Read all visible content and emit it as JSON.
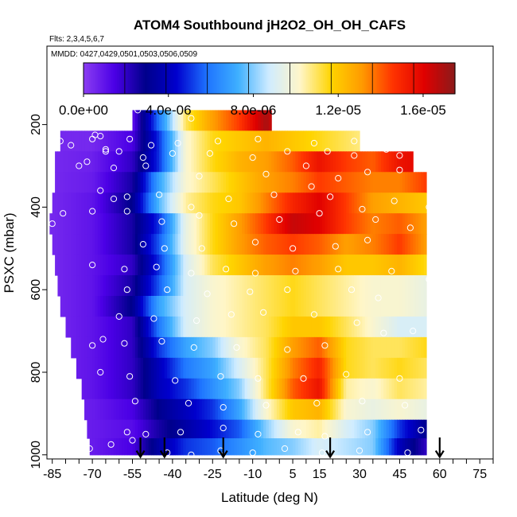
{
  "chart_data": {
    "type": "heatmap",
    "title": "ATOM4 Southbound jH2O2_OH_OH_CAFS",
    "flights_label": "Flts: 2,3,4,5,6,7",
    "dates_label": "MMDD: 0427,0429,0501,0503,0506,0509",
    "xlabel": "Latitude (deg N)",
    "ylabel": "PSXC (mbar)",
    "xlim": [
      -87,
      80
    ],
    "ylim": [
      1010,
      10
    ],
    "x_ticks": [
      -85,
      -70,
      -55,
      -40,
      -25,
      -10,
      5,
      15,
      30,
      45,
      60,
      75
    ],
    "x_tick_labels": [
      "-85",
      "-70",
      "-55",
      "-40",
      "-25",
      "-10",
      "5",
      "15",
      "30",
      "45",
      "60",
      "75"
    ],
    "y_ticks": [
      200,
      400,
      600,
      800,
      1000
    ],
    "y_tick_labels": [
      "200",
      "400",
      "600",
      "800",
      "1000"
    ],
    "colorbar": {
      "min": 0,
      "max": 1.75e-05,
      "ticks": [
        0,
        4e-06,
        8e-06,
        1.2e-05,
        1.6e-05
      ],
      "tick_labels": [
        "0.0e+00",
        "4.0e-06",
        "8.0e-06",
        "1.2e-05",
        "1.6e-05"
      ],
      "colors": [
        "#8b3ef2",
        "#4b00e6",
        "#00008b",
        "#0000cd",
        "#1e74ff",
        "#3fb0ff",
        "#d0ecff",
        "#fff6c8",
        "#ffd400",
        "#ff9a00",
        "#ff3300",
        "#e00000",
        "#8b1a1a"
      ]
    },
    "pressure_levels": [
      190,
      240,
      290,
      340,
      390,
      440,
      490,
      540,
      590,
      640,
      690,
      740,
      790,
      840,
      890,
      940,
      980
    ],
    "lat_extent": [
      [
        -55,
        -3
      ],
      [
        -82,
        30
      ],
      [
        -84,
        50
      ],
      [
        -84,
        55
      ],
      [
        -85,
        55
      ],
      [
        -86,
        55
      ],
      [
        -85,
        55
      ],
      [
        -84,
        55
      ],
      [
        -83,
        55
      ],
      [
        -82,
        55
      ],
      [
        -80,
        55
      ],
      [
        -78,
        55
      ],
      [
        -76,
        55
      ],
      [
        -74,
        55
      ],
      [
        -73,
        55
      ],
      [
        -72,
        55
      ],
      [
        -71,
        55
      ]
    ],
    "lat_nodes": [
      -85,
      -70,
      -55,
      -45,
      -35,
      -25,
      -15,
      -5,
      5,
      15,
      25,
      35,
      45,
      55,
      65,
      72
    ],
    "values_e6": [
      [
        0.5,
        0.5,
        1.0,
        6.0,
        11.0,
        13.0,
        14.5,
        17.0,
        14.0,
        12.0,
        11.0,
        10.0,
        9.0,
        9.0,
        9.0,
        9.0
      ],
      [
        0.5,
        0.5,
        1.5,
        5.0,
        10.0,
        11.5,
        12.0,
        12.5,
        12.0,
        11.5,
        11.0,
        10.5,
        10.0,
        10.0,
        10.0,
        10.0
      ],
      [
        0.5,
        0.7,
        2.0,
        5.0,
        10.0,
        11.5,
        12.5,
        13.0,
        14.0,
        15.5,
        14.5,
        14.0,
        15.5,
        16.0,
        11.0,
        10.0
      ],
      [
        0.5,
        0.8,
        2.5,
        7.0,
        10.0,
        11.0,
        12.0,
        13.0,
        13.5,
        14.5,
        14.0,
        13.5,
        13.5,
        14.5,
        11.0,
        9.0
      ],
      [
        0.5,
        1.0,
        3.0,
        7.5,
        10.5,
        11.5,
        12.0,
        13.5,
        15.0,
        16.0,
        14.5,
        13.0,
        12.5,
        12.0,
        10.5,
        8.5
      ],
      [
        0.5,
        1.0,
        2.5,
        5.0,
        9.5,
        11.5,
        13.0,
        14.5,
        16.5,
        16.0,
        14.5,
        13.5,
        14.0,
        13.0,
        11.5,
        9.5
      ],
      [
        0.5,
        1.0,
        2.5,
        5.5,
        9.5,
        11.5,
        13.0,
        14.0,
        14.5,
        14.0,
        13.0,
        13.5,
        14.5,
        13.0,
        11.0,
        9.0
      ],
      [
        0.5,
        1.0,
        2.0,
        5.0,
        9.0,
        11.0,
        12.0,
        13.0,
        13.5,
        13.0,
        12.0,
        12.0,
        12.5,
        11.5,
        10.0,
        9.0
      ],
      [
        0.5,
        1.0,
        2.5,
        5.5,
        9.0,
        10.0,
        10.5,
        11.0,
        11.5,
        11.0,
        10.5,
        10.0,
        10.0,
        9.5,
        9.0,
        9.0
      ],
      [
        0.5,
        1.0,
        3.0,
        7.0,
        9.0,
        10.0,
        10.5,
        11.0,
        11.5,
        11.0,
        10.5,
        10.0,
        10.0,
        9.5,
        9.0,
        9.0
      ],
      [
        0.5,
        1.0,
        2.0,
        6.0,
        9.0,
        10.0,
        10.5,
        11.0,
        12.0,
        12.0,
        11.0,
        10.0,
        9.0,
        9.0,
        9.0,
        9.0
      ],
      [
        0.5,
        1.0,
        2.0,
        5.0,
        7.0,
        8.0,
        10.0,
        11.0,
        13.0,
        14.0,
        11.5,
        11.0,
        11.0,
        11.5,
        10.0,
        9.0
      ],
      [
        0.5,
        1.0,
        2.0,
        4.0,
        6.0,
        7.0,
        9.0,
        11.0,
        13.5,
        15.0,
        11.5,
        11.0,
        11.5,
        11.0,
        10.0,
        9.0
      ],
      [
        0.5,
        1.0,
        2.0,
        4.0,
        5.0,
        6.5,
        8.0,
        11.0,
        14.0,
        15.5,
        10.5,
        10.0,
        11.0,
        10.5,
        9.5,
        9.0
      ],
      [
        0.5,
        0.8,
        1.5,
        3.0,
        4.0,
        5.0,
        7.0,
        10.0,
        12.0,
        12.5,
        10.0,
        9.5,
        10.0,
        9.5,
        8.5,
        8.5
      ],
      [
        0.5,
        0.8,
        1.2,
        2.5,
        3.5,
        4.5,
        5.5,
        8.0,
        10.0,
        10.5,
        9.0,
        8.0,
        5.0,
        3.0,
        6.0,
        8.0
      ],
      [
        0.5,
        0.8,
        1.5,
        3.5,
        5.0,
        5.5,
        6.5,
        7.5,
        8.0,
        9.0,
        8.5,
        8.0,
        4.0,
        2.0,
        4.0,
        7.0
      ]
    ],
    "observation_points": [
      [
        -53,
        165
      ],
      [
        -33,
        185
      ],
      [
        -82,
        240
      ],
      [
        -78,
        250
      ],
      [
        -70,
        235
      ],
      [
        -69,
        225
      ],
      [
        -67,
        228
      ],
      [
        -65,
        265
      ],
      [
        -60,
        265
      ],
      [
        -56,
        235
      ],
      [
        -48,
        250
      ],
      [
        -38,
        245
      ],
      [
        -23,
        240
      ],
      [
        -8,
        235
      ],
      [
        13,
        245
      ],
      [
        28,
        240
      ],
      [
        40,
        260
      ],
      [
        44,
        250
      ],
      [
        57,
        245
      ],
      [
        -72,
        290
      ],
      [
        -65,
        260
      ],
      [
        -51,
        280
      ],
      [
        -40,
        270
      ],
      [
        -26,
        270
      ],
      [
        -10,
        280
      ],
      [
        3,
        265
      ],
      [
        18,
        265
      ],
      [
        28,
        275
      ],
      [
        45,
        275
      ],
      [
        52,
        280
      ],
      [
        -75,
        300
      ],
      [
        -62,
        305
      ],
      [
        -50,
        300
      ],
      [
        -30,
        325
      ],
      [
        -5,
        320
      ],
      [
        10,
        300
      ],
      [
        22,
        330
      ],
      [
        33,
        315
      ],
      [
        45,
        310
      ],
      [
        57,
        305
      ],
      [
        -67,
        360
      ],
      [
        -62,
        380
      ],
      [
        -57,
        375
      ],
      [
        -45,
        370
      ],
      [
        -33,
        400
      ],
      [
        -19,
        380
      ],
      [
        -2,
        370
      ],
      [
        12,
        350
      ],
      [
        19,
        375
      ],
      [
        31,
        405
      ],
      [
        43,
        385
      ],
      [
        56,
        400
      ],
      [
        -85,
        440
      ],
      [
        -81,
        415
      ],
      [
        -70,
        410
      ],
      [
        -57,
        410
      ],
      [
        -44,
        435
      ],
      [
        -30,
        420
      ],
      [
        -17,
        440
      ],
      [
        0,
        430
      ],
      [
        15,
        415
      ],
      [
        36,
        430
      ],
      [
        49,
        450
      ],
      [
        58,
        455
      ],
      [
        -51,
        490
      ],
      [
        -43,
        500
      ],
      [
        -29,
        500
      ],
      [
        -9,
        485
      ],
      [
        5,
        500
      ],
      [
        21,
        495
      ],
      [
        33,
        480
      ],
      [
        -70,
        540
      ],
      [
        -58,
        550
      ],
      [
        -46,
        545
      ],
      [
        -33,
        560
      ],
      [
        -20,
        550
      ],
      [
        -9,
        560
      ],
      [
        6,
        555
      ],
      [
        22,
        550
      ],
      [
        42,
        555
      ],
      [
        56,
        575
      ],
      [
        -57,
        600
      ],
      [
        -42,
        600
      ],
      [
        -27,
        610
      ],
      [
        -11,
        605
      ],
      [
        3,
        600
      ],
      [
        27,
        600
      ],
      [
        37,
        620
      ],
      [
        -60,
        665
      ],
      [
        -47,
        670
      ],
      [
        -31,
        675
      ],
      [
        -18,
        660
      ],
      [
        -6,
        655
      ],
      [
        13,
        660
      ],
      [
        29,
        680
      ],
      [
        39,
        705
      ],
      [
        50,
        700
      ],
      [
        61,
        690
      ],
      [
        -70,
        735
      ],
      [
        -66,
        720
      ],
      [
        -58,
        730
      ],
      [
        -44,
        725
      ],
      [
        -32,
        740
      ],
      [
        -16,
        740
      ],
      [
        3,
        745
      ],
      [
        17,
        735
      ],
      [
        -67,
        800
      ],
      [
        -56,
        810
      ],
      [
        -39,
        820
      ],
      [
        -22,
        810
      ],
      [
        -8,
        815
      ],
      [
        9,
        815
      ],
      [
        25,
        805
      ],
      [
        45,
        815
      ],
      [
        58,
        820
      ],
      [
        -54,
        870
      ],
      [
        -34,
        875
      ],
      [
        -21,
        885
      ],
      [
        -5,
        880
      ],
      [
        14,
        875
      ],
      [
        31,
        870
      ],
      [
        47,
        880
      ],
      [
        59,
        885
      ],
      [
        -57,
        945
      ],
      [
        -50,
        950
      ],
      [
        -37,
        945
      ],
      [
        -21,
        935
      ],
      [
        -8,
        950
      ],
      [
        7,
        945
      ],
      [
        17,
        955
      ],
      [
        33,
        945
      ],
      [
        53,
        940
      ],
      [
        66,
        945
      ],
      [
        70,
        965
      ],
      [
        -71,
        985
      ],
      [
        -63,
        975
      ],
      [
        -55,
        965
      ],
      [
        -42,
        995
      ],
      [
        -33,
        1000
      ],
      [
        -22,
        990
      ],
      [
        -10,
        995
      ],
      [
        2,
        985
      ],
      [
        16,
        995
      ],
      [
        30,
        990
      ],
      [
        48,
        995
      ],
      [
        60,
        990
      ],
      [
        70,
        990
      ]
    ],
    "arrows_lat": [
      -52,
      -43,
      -21,
      19,
      60
    ]
  }
}
